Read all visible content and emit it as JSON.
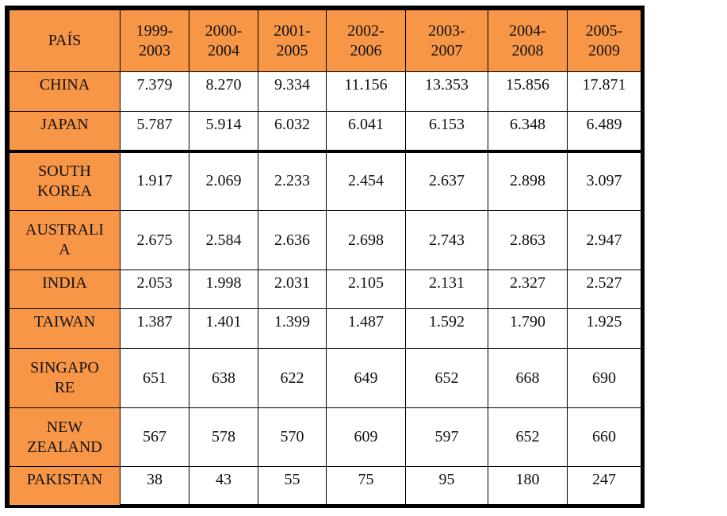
{
  "table": {
    "header_country": "PAÍS",
    "columns": [
      "1999-\n2003",
      "2000-\n2004",
      "2001-\n2005",
      "2002-\n2006",
      "2003-\n2007",
      "2004-\n2008",
      "2005-\n2009"
    ],
    "rows": [
      {
        "country": "CHINA",
        "values": [
          "7.379",
          "8.270",
          "9.334",
          "11.156",
          "13.353",
          "15.856",
          "17.871"
        ]
      },
      {
        "country": "JAPAN",
        "values": [
          "5.787",
          "5.914",
          "6.032",
          "6.041",
          "6.153",
          "6.348",
          "6.489"
        ]
      },
      {
        "country": "SOUTH KOREA",
        "values": [
          "1.917",
          "2.069",
          "2.233",
          "2.454",
          "2.637",
          "2.898",
          "3.097"
        ]
      },
      {
        "country": "AUSTRALIA",
        "values": [
          "2.675",
          "2.584",
          "2.636",
          "2.698",
          "2.743",
          "2.863",
          "2.947"
        ]
      },
      {
        "country": "INDIA",
        "values": [
          "2.053",
          "1.998",
          "2.031",
          "2.105",
          "2.131",
          "2.327",
          "2.527"
        ]
      },
      {
        "country": "TAIWAN",
        "values": [
          "1.387",
          "1.401",
          "1.399",
          "1.487",
          "1.592",
          "1.790",
          "1.925"
        ]
      },
      {
        "country": "SINGAPORE",
        "values": [
          "651",
          "638",
          "622",
          "649",
          "652",
          "668",
          "690"
        ]
      },
      {
        "country": "NEW ZEALAND",
        "values": [
          "567",
          "578",
          "570",
          "609",
          "597",
          "652",
          "660"
        ]
      },
      {
        "country": "PAKISTAN",
        "values": [
          "38",
          "43",
          "55",
          "75",
          "95",
          "180",
          "247"
        ]
      }
    ]
  },
  "colors": {
    "header_bg": "#F79646",
    "border": "#000000"
  }
}
